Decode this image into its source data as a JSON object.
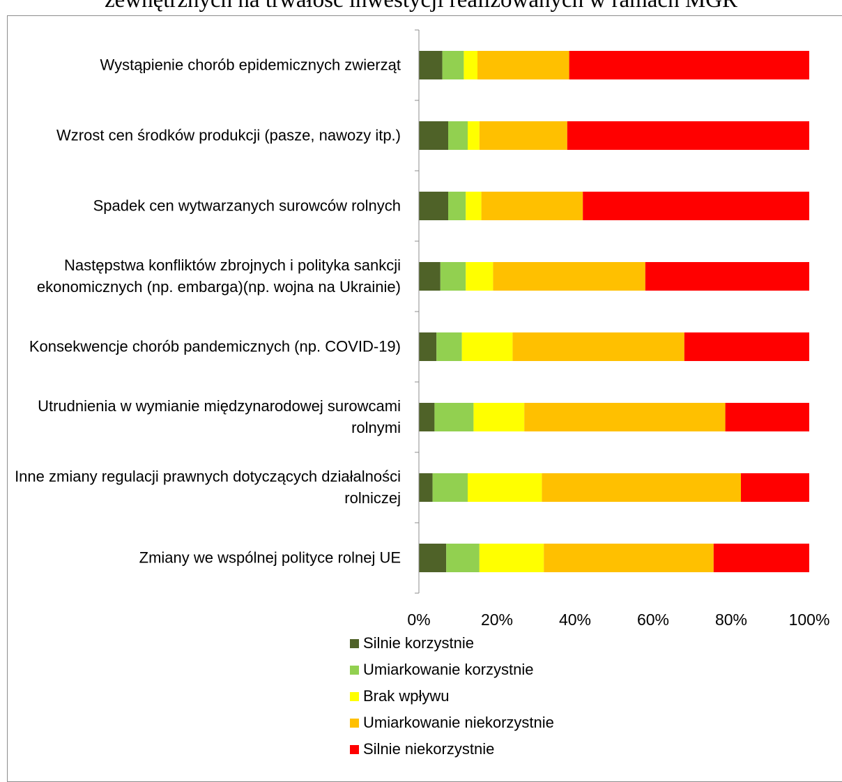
{
  "chart_data": {
    "type": "bar",
    "orientation": "horizontal",
    "stacked": true,
    "title": "zewnętrznych na trwałość inwestycji realizowanych w ramach MGR",
    "categories": [
      [
        "Wystąpienie chorób epidemicznych zwierząt"
      ],
      [
        "Wzrost cen środków produkcji (pasze, nawozy itp.)"
      ],
      [
        "Spadek cen wytwarzanych surowców rolnych"
      ],
      [
        "Następstwa konfliktów zbrojnych i polityka sankcji",
        "ekonomicznych (np. embarga)(np. wojna na Ukrainie)"
      ],
      [
        "Konsekwencje chorób pandemicznych (np. COVID-19)"
      ],
      [
        "Utrudnienia w wymianie międzynarodowej surowcami",
        "rolnymi"
      ],
      [
        "Inne zmiany regulacji prawnych dotyczących działalności",
        "rolniczej"
      ],
      [
        "Zmiany we wspólnej polityce rolnej UE"
      ]
    ],
    "series": [
      {
        "name": "Silnie korzystnie",
        "color": "#4f6228",
        "values": [
          6,
          7.5,
          7.5,
          5.5,
          4.5,
          4,
          3.5,
          7
        ]
      },
      {
        "name": "Umiarkowanie korzystnie",
        "color": "#92d050",
        "values": [
          5.5,
          5,
          4.5,
          6.5,
          6.5,
          10,
          9,
          8.5
        ]
      },
      {
        "name": "Brak wpływu",
        "color": "#ffff00",
        "values": [
          3.5,
          3,
          4,
          7,
          13,
          13,
          19,
          16.5
        ]
      },
      {
        "name": "Umiarkowanie niekorzystnie",
        "color": "#ffc000",
        "values": [
          23.5,
          22.5,
          26,
          39,
          44,
          51.5,
          51,
          43.5
        ]
      },
      {
        "name": "Silnie niekorzystnie",
        "color": "#ff0000",
        "values": [
          61.5,
          62,
          58,
          42,
          32,
          21.5,
          17.5,
          24.5
        ]
      }
    ],
    "xlim": [
      0,
      100
    ],
    "xticks": [
      "0%",
      "20%",
      "40%",
      "60%",
      "80%",
      "100%"
    ],
    "grid": false,
    "legend_position": "bottom"
  }
}
